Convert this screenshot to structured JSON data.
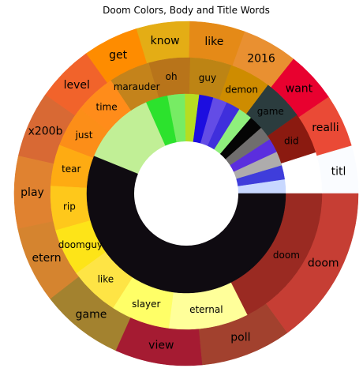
{
  "chart_data": {
    "type": "pie",
    "title": "Doom Colors, Body and Title Words",
    "start_angle_deg": 0,
    "direction": "counterclockwise",
    "rings": [
      {
        "name": "outer",
        "slices": [
          {
            "label": "titl",
            "value": 4.5,
            "color": "#fafcff"
          },
          {
            "label": "realli",
            "value": 5.0,
            "color": "#ea4a36"
          },
          {
            "label": "want",
            "value": 4.8,
            "color": "#e8012f"
          },
          {
            "label": "2016",
            "value": 5.2,
            "color": "#e99031"
          },
          {
            "label": "like",
            "value": 5.2,
            "color": "#e58a17"
          },
          {
            "label": "know",
            "value": 5.0,
            "color": "#e4ad15"
          },
          {
            "label": "get",
            "value": 5.2,
            "color": "#fe8c00"
          },
          {
            "label": "level",
            "value": 5.4,
            "color": "#f1632b"
          },
          {
            "label": "x200b",
            "value": 6.2,
            "color": "#d86934"
          },
          {
            "label": "play",
            "value": 6.8,
            "color": "#e08230"
          },
          {
            "label": "etern",
            "value": 7.2,
            "color": "#d5842f"
          },
          {
            "label": "game",
            "value": 7.8,
            "color": "#a3822f"
          },
          {
            "label": "view",
            "value": 8.2,
            "color": "#a51b32"
          },
          {
            "label": "poll",
            "value": 8.5,
            "color": "#a2412e"
          },
          {
            "label": "doom",
            "value": 15.0,
            "color": "#c63e34"
          }
        ]
      },
      {
        "name": "middle",
        "slices": [
          {
            "label": "",
            "value": 1.4,
            "color": "#ffffff"
          },
          {
            "label": "did",
            "value": 1.4,
            "color": "#8b1a10"
          },
          {
            "label": "game",
            "value": 1.4,
            "color": "#2b3c3e"
          },
          {
            "label": "demon",
            "value": 1.4,
            "color": "#ce8c00"
          },
          {
            "label": "guy",
            "value": 1.4,
            "color": "#bd8414"
          },
          {
            "label": "oh",
            "value": 1.4,
            "color": "#b8741a"
          },
          {
            "label": "marauder",
            "value": 1.4,
            "color": "#c4831b"
          },
          {
            "label": "time",
            "value": 1.4,
            "color": "#ff8c1a"
          },
          {
            "label": "just",
            "value": 1.4,
            "color": "#fc8e18"
          },
          {
            "label": "tear",
            "value": 1.4,
            "color": "#feab12"
          },
          {
            "label": "rip",
            "value": 1.5,
            "color": "#fec81b"
          },
          {
            "label": "doomguy",
            "value": 1.6,
            "color": "#fde418"
          },
          {
            "label": "like",
            "value": 1.7,
            "color": "#fee445"
          },
          {
            "label": "slayer",
            "value": 2.0,
            "color": "#ffff67"
          },
          {
            "label": "eternal",
            "value": 2.7,
            "color": "#ffff9a"
          },
          {
            "label": "doom",
            "value": 5.0,
            "color": "#9a2a22"
          }
        ]
      },
      {
        "name": "inner",
        "slices": [
          {
            "label": "",
            "value": 0.9,
            "color": "#c8d8ff"
          },
          {
            "label": "",
            "value": 0.9,
            "color": "#3f3ddb"
          },
          {
            "label": "",
            "value": 0.9,
            "color": "#aeacac"
          },
          {
            "label": "",
            "value": 0.9,
            "color": "#5b2ede"
          },
          {
            "label": "",
            "value": 0.9,
            "color": "#706e6e"
          },
          {
            "label": "",
            "value": 0.9,
            "color": "#050505"
          },
          {
            "label": "",
            "value": 0.9,
            "color": "#8fef7c"
          },
          {
            "label": "",
            "value": 0.9,
            "color": "#3f2fdc"
          },
          {
            "label": "",
            "value": 0.9,
            "color": "#634ce6"
          },
          {
            "label": "",
            "value": 0.9,
            "color": "#1c0ee0"
          },
          {
            "label": "",
            "value": 0.9,
            "color": "#b6dd21"
          },
          {
            "label": "",
            "value": 1.1,
            "color": "#77ec64"
          },
          {
            "label": "",
            "value": 1.4,
            "color": "#2ce22d"
          },
          {
            "label": "",
            "value": 4.8,
            "color": "#c1ef96"
          },
          {
            "label": "",
            "value": 22.0,
            "color": "#0f0b11"
          }
        ]
      }
    ]
  }
}
